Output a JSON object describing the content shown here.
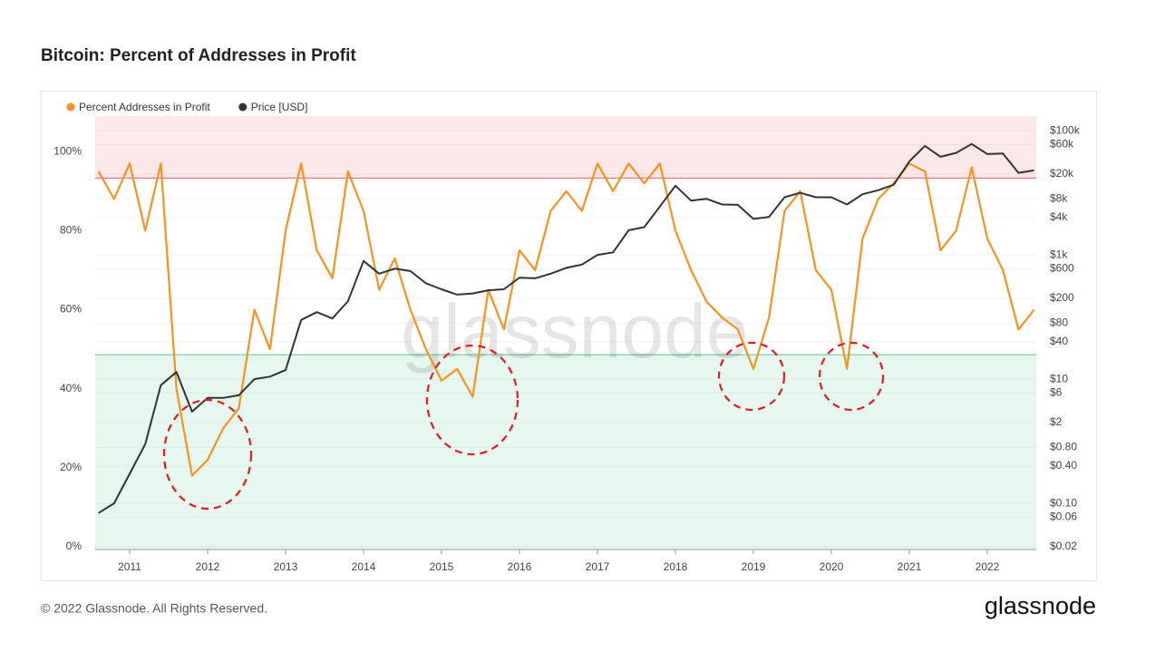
{
  "chart_data": {
    "type": "line",
    "title": "Bitcoin: Percent of Addresses in Profit",
    "watermark": "glassnode",
    "footer": "© 2022 Glassnode. All Rights Reserved.",
    "logo": "glassnode",
    "legend": "top-left",
    "grid": true,
    "x": [
      2010.6,
      2010.8,
      2011.0,
      2011.2,
      2011.4,
      2011.6,
      2011.8,
      2012.0,
      2012.2,
      2012.4,
      2012.6,
      2012.8,
      2013.0,
      2013.2,
      2013.4,
      2013.6,
      2013.8,
      2014.0,
      2014.2,
      2014.4,
      2014.6,
      2014.8,
      2015.0,
      2015.2,
      2015.4,
      2015.6,
      2015.8,
      2016.0,
      2016.2,
      2016.4,
      2016.6,
      2016.8,
      2017.0,
      2017.2,
      2017.4,
      2017.6,
      2017.8,
      2018.0,
      2018.2,
      2018.4,
      2018.6,
      2018.8,
      2019.0,
      2019.2,
      2019.4,
      2019.6,
      2019.8,
      2020.0,
      2020.2,
      2020.4,
      2020.6,
      2020.8,
      2021.0,
      2021.2,
      2021.4,
      2021.6,
      2021.8,
      2022.0,
      2022.2,
      2022.4,
      2022.6
    ],
    "xlim": [
      2010.558,
      2022.628
    ],
    "xticks": [
      2011,
      2012,
      2013,
      2014,
      2015,
      2016,
      2017,
      2018,
      2019,
      2020,
      2021,
      2022
    ],
    "ylim": [
      -0.7,
      109
    ],
    "yticks": [
      {
        "value": 0,
        "label": "0%"
      },
      {
        "value": 20,
        "label": "20%"
      },
      {
        "value": 40,
        "label": "40%"
      },
      {
        "value": 60,
        "label": "60%"
      },
      {
        "value": 80,
        "label": "80%"
      },
      {
        "value": 100,
        "label": "100%"
      }
    ],
    "y2log": true,
    "y2lim": [
      0.0181,
      172000
    ],
    "y2ticks": [
      {
        "value": 100000,
        "label": "$100k"
      },
      {
        "value": 60000,
        "label": "$60k"
      },
      {
        "value": 20000,
        "label": "$20k"
      },
      {
        "value": 8000,
        "label": "$8k"
      },
      {
        "value": 4000,
        "label": "$4k"
      },
      {
        "value": 1000,
        "label": "$1k"
      },
      {
        "value": 600,
        "label": "$600"
      },
      {
        "value": 200,
        "label": "$200"
      },
      {
        "value": 80,
        "label": "$80"
      },
      {
        "value": 40,
        "label": "$40"
      },
      {
        "value": 10,
        "label": "$10"
      },
      {
        "value": 6,
        "label": "$6"
      },
      {
        "value": 2,
        "label": "$2"
      },
      {
        "value": 0.8,
        "label": "$0.80"
      },
      {
        "value": 0.4,
        "label": "$0.40"
      },
      {
        "value": 0.1,
        "label": "$0.10"
      },
      {
        "value": 0.06,
        "label": "$0.06"
      },
      {
        "value": 0.02,
        "label": "$0.02"
      }
    ],
    "zones": [
      {
        "from": 93.3,
        "to": 109,
        "color": "#fde8e9",
        "line": "#e07e84"
      },
      {
        "from": -0.7,
        "to": 48.6,
        "color": "#e5f7ee",
        "line": "#6cc79c"
      }
    ],
    "series": [
      {
        "name": "Percent Addresses in Profit",
        "color": "#f7931a",
        "values": [
          95,
          88,
          97,
          80,
          97,
          40,
          18,
          22,
          30,
          35,
          60,
          50,
          80,
          97,
          75,
          68,
          95,
          85,
          65,
          73,
          60,
          50,
          42,
          45,
          38,
          65,
          55,
          75,
          70,
          85,
          90,
          85,
          97,
          90,
          97,
          92,
          97,
          80,
          70,
          62,
          58,
          55,
          45,
          58,
          85,
          90,
          70,
          65,
          45,
          78,
          88,
          92,
          97,
          95,
          75,
          80,
          96,
          78,
          70,
          55,
          60
        ]
      },
      {
        "name": "Price [USD]",
        "color": "#333333",
        "axis": "y2",
        "values": [
          0.07,
          0.1,
          0.3,
          0.9,
          8,
          13,
          3,
          5,
          5,
          5.5,
          10,
          11,
          14,
          90,
          120,
          95,
          180,
          800,
          500,
          600,
          550,
          350,
          280,
          230,
          240,
          270,
          280,
          430,
          420,
          500,
          620,
          700,
          1000,
          1100,
          2500,
          2800,
          6000,
          13000,
          7500,
          8000,
          6500,
          6400,
          3800,
          4100,
          8500,
          10000,
          8500,
          8500,
          6500,
          9500,
          11000,
          13500,
          32000,
          57000,
          38000,
          44000,
          61000,
          42000,
          43000,
          21000,
          23000
        ]
      }
    ]
  }
}
